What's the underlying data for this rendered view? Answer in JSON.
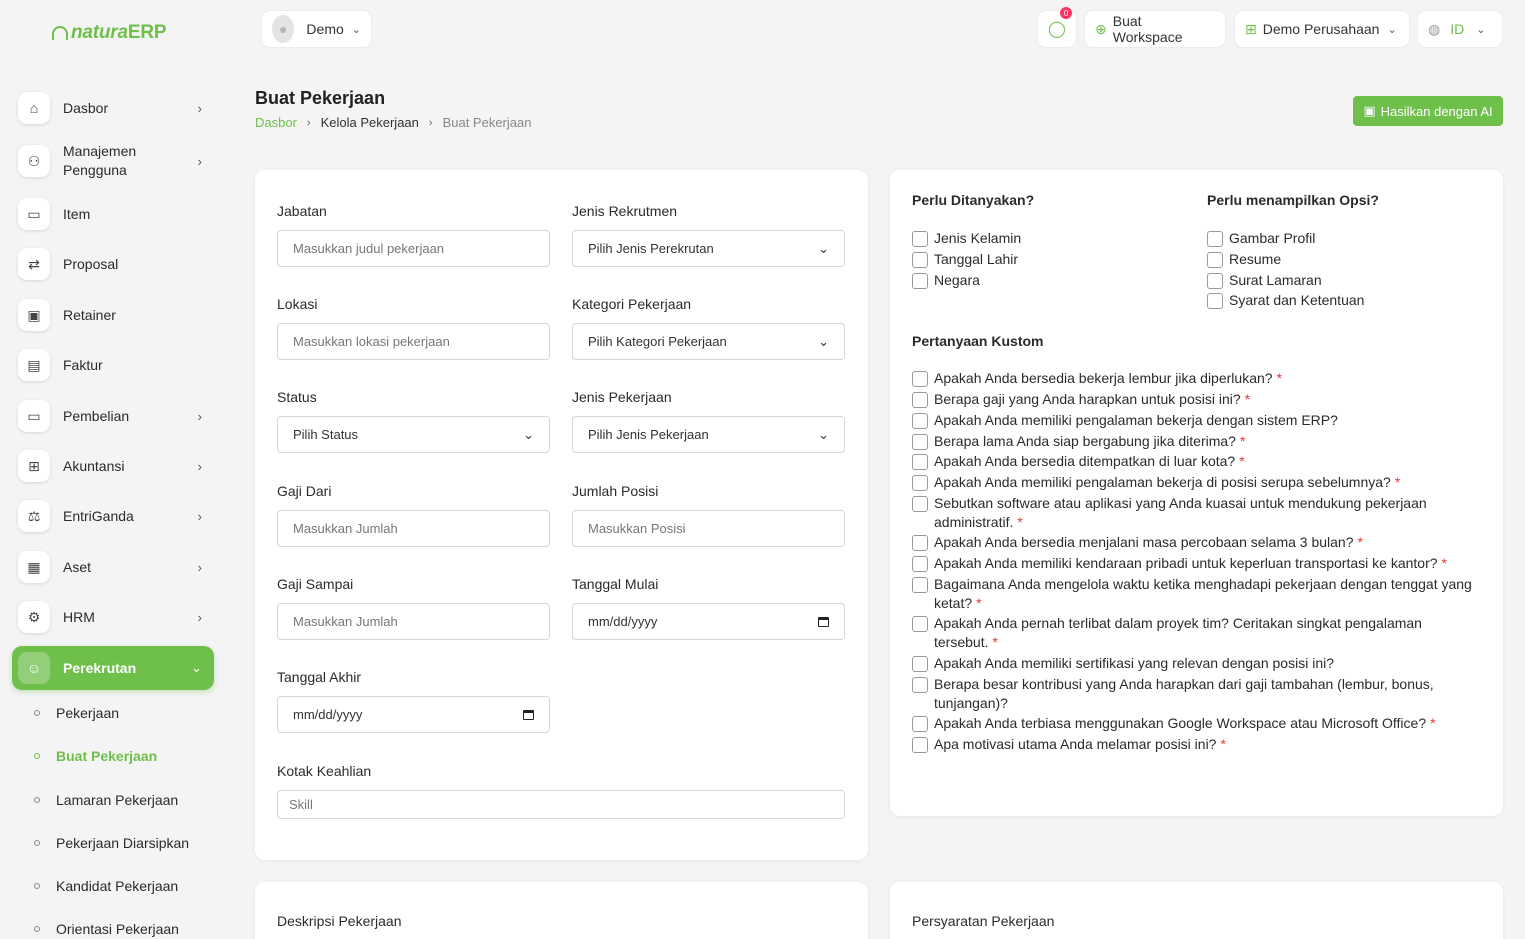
{
  "brand": {
    "prefix": "natura",
    "suffix": "ERP"
  },
  "sidebar": {
    "items": [
      {
        "label": "Dasbor"
      },
      {
        "label": "Manajemen\nPengguna"
      },
      {
        "label": "Item"
      },
      {
        "label": "Proposal"
      },
      {
        "label": "Retainer"
      },
      {
        "label": "Faktur"
      },
      {
        "label": "Pembelian"
      },
      {
        "label": "Akuntansi"
      },
      {
        "label": "EntriGanda"
      },
      {
        "label": "Aset"
      },
      {
        "label": "HRM"
      },
      {
        "label": "Perekrutan"
      }
    ],
    "sub_items": [
      {
        "label": "Pekerjaan"
      },
      {
        "label": "Buat Pekerjaan"
      },
      {
        "label": "Lamaran Pekerjaan"
      },
      {
        "label": "Pekerjaan Diarsipkan"
      },
      {
        "label": "Kandidat Pekerjaan"
      },
      {
        "label": "Orientasi Pekerjaan"
      }
    ]
  },
  "topbar": {
    "user": "Demo",
    "notif_count": "0",
    "create_workspace": "Buat Workspace",
    "company": "Demo Perusahaan",
    "language": "ID"
  },
  "header": {
    "title": "Buat Pekerjaan",
    "breadcrumb": [
      "Dasbor",
      "Kelola Pekerjaan",
      "Buat Pekerjaan"
    ],
    "ai_button": "Hasilkan dengan AI"
  },
  "form": {
    "jabatan": {
      "label": "Jabatan",
      "placeholder": "Masukkan judul pekerjaan"
    },
    "jenis_rekrutmen": {
      "label": "Jenis Rekrutmen",
      "value": "Pilih Jenis Perekrutan"
    },
    "lokasi": {
      "label": "Lokasi",
      "placeholder": "Masukkan lokasi pekerjaan"
    },
    "kategori": {
      "label": "Kategori Pekerjaan",
      "value": "Pilih Kategori Pekerjaan"
    },
    "status": {
      "label": "Status",
      "value": "Pilih Status"
    },
    "jenis_pekerjaan": {
      "label": "Jenis Pekerjaan",
      "value": "Pilih Jenis Pekerjaan"
    },
    "gaji_dari": {
      "label": "Gaji Dari",
      "placeholder": "Masukkan Jumlah"
    },
    "jumlah_posisi": {
      "label": "Jumlah Posisi",
      "placeholder": "Masukkan Posisi"
    },
    "gaji_sampai": {
      "label": "Gaji Sampai",
      "placeholder": "Masukkan Jumlah"
    },
    "tanggal_mulai": {
      "label": "Tanggal Mulai",
      "placeholder": "mm/dd/yyyy"
    },
    "tanggal_akhir": {
      "label": "Tanggal Akhir",
      "placeholder": "mm/dd/yyyy"
    },
    "keahlian": {
      "label": "Kotak Keahlian",
      "placeholder": "Skill"
    }
  },
  "options": {
    "ask_title": "Perlu Ditanyakan?",
    "ask_items": [
      "Jenis Kelamin",
      "Tanggal Lahir",
      "Negara"
    ],
    "show_title": "Perlu menampilkan Opsi?",
    "show_items": [
      "Gambar Profil",
      "Resume",
      "Surat Lamaran",
      "Syarat dan Ketentuan"
    ],
    "custom_title": "Pertanyaan Kustom",
    "custom_questions": [
      {
        "text": "Apakah Anda bersedia bekerja lembur jika diperlukan?",
        "required": "*"
      },
      {
        "text": "Berapa gaji yang Anda harapkan untuk posisi ini?",
        "required": "*"
      },
      {
        "text": "Apakah Anda memiliki pengalaman bekerja dengan sistem ERP?",
        "required": ""
      },
      {
        "text": "Berapa lama Anda siap bergabung jika diterima?",
        "required": "*"
      },
      {
        "text": "Apakah Anda bersedia ditempatkan di luar kota?",
        "required": "*"
      },
      {
        "text": "Apakah Anda memiliki pengalaman bekerja di posisi serupa sebelumnya?",
        "required": "*"
      },
      {
        "text": "Sebutkan software atau aplikasi yang Anda kuasai untuk mendukung pekerjaan administratif.",
        "required": "*"
      },
      {
        "text": "Apakah Anda bersedia menjalani masa percobaan selama 3 bulan?",
        "required": "*"
      },
      {
        "text": "Apakah Anda memiliki kendaraan pribadi untuk keperluan transportasi ke kantor?",
        "required": "*"
      },
      {
        "text": "Bagaimana Anda mengelola waktu ketika menghadapi pekerjaan dengan tenggat yang ketat?",
        "required": "*"
      },
      {
        "text": "Apakah Anda pernah terlibat dalam proyek tim? Ceritakan singkat pengalaman tersebut.",
        "required": "*"
      },
      {
        "text": "Apakah Anda memiliki sertifikasi yang relevan dengan posisi ini?",
        "required": ""
      },
      {
        "text": "Berapa besar kontribusi yang Anda harapkan dari gaji tambahan (lembur, bonus, tunjangan)?",
        "required": ""
      },
      {
        "text": "Apakah Anda terbiasa menggunakan Google Workspace atau Microsoft Office?",
        "required": "*"
      },
      {
        "text": "Apa motivasi utama Anda melamar posisi ini?",
        "required": "*"
      }
    ]
  },
  "bottom": {
    "description_title": "Deskripsi Pekerjaan",
    "requirements_title": "Persyaratan Pekerjaan"
  },
  "colors": {
    "accent": "#6fbf4b",
    "required": "#e53935",
    "badge": "#ff3366"
  }
}
